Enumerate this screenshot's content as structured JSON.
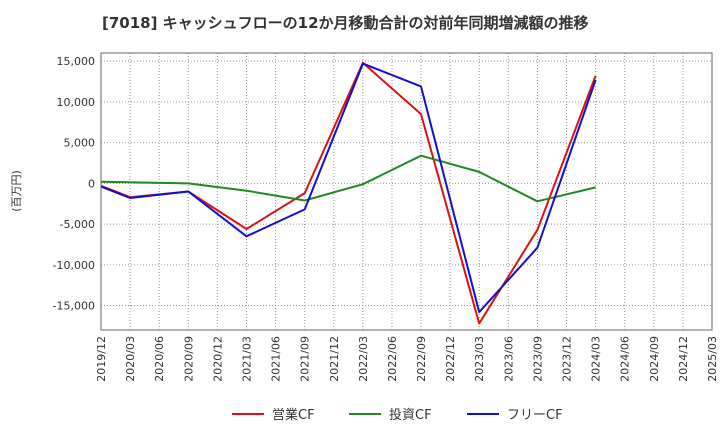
{
  "chart_data": {
    "type": "line",
    "title": "[7018]  キャッシュフローの12か月移動合計の対前年同期増減額の推移",
    "ylabel": "(百万円)",
    "xlabel": "",
    "ylim": [
      -18000,
      16000
    ],
    "yticks": [
      15000,
      10000,
      5000,
      0,
      -5000,
      -10000,
      -15000
    ],
    "ytick_labels": [
      "15,000",
      "10,000",
      "5,000",
      "0",
      "-5,000",
      "-10,000",
      "-15,000"
    ],
    "categories": [
      "2019/12",
      "2020/03",
      "2020/06",
      "2020/09",
      "2020/12",
      "2021/03",
      "2021/06",
      "2021/09",
      "2021/12",
      "2022/03",
      "2022/06",
      "2022/09",
      "2022/12",
      "2023/03",
      "2023/06",
      "2023/09",
      "2023/12",
      "2024/03",
      "2024/06",
      "2024/09",
      "2024/12",
      "2025/03"
    ],
    "grid": true,
    "legend_position": "bottom",
    "series": [
      {
        "name": "営業CF",
        "color": "#dd1111",
        "points": [
          [
            "2019/12",
            -300
          ],
          [
            "2020/03",
            -1700
          ],
          [
            "2020/09",
            -1000
          ],
          [
            "2021/03",
            -5600
          ],
          [
            "2021/09",
            -1200
          ],
          [
            "2022/03",
            14800
          ],
          [
            "2022/09",
            8500
          ],
          [
            "2023/03",
            -17200
          ],
          [
            "2023/09",
            -5700
          ],
          [
            "2024/03",
            13200
          ]
        ]
      },
      {
        "name": "投資CF",
        "color": "#228822",
        "points": [
          [
            "2019/12",
            200
          ],
          [
            "2020/09",
            0
          ],
          [
            "2021/03",
            -900
          ],
          [
            "2021/09",
            -2100
          ],
          [
            "2022/03",
            -100
          ],
          [
            "2022/09",
            3400
          ],
          [
            "2023/03",
            1400
          ],
          [
            "2023/09",
            -2200
          ],
          [
            "2024/03",
            -500
          ]
        ]
      },
      {
        "name": "フリーCF",
        "color": "#1111cc",
        "points": [
          [
            "2019/12",
            -400
          ],
          [
            "2020/03",
            -1800
          ],
          [
            "2020/09",
            -1000
          ],
          [
            "2021/03",
            -6500
          ],
          [
            "2021/09",
            -3200
          ],
          [
            "2022/03",
            14700
          ],
          [
            "2022/09",
            11900
          ],
          [
            "2023/03",
            -15800
          ],
          [
            "2023/09",
            -7900
          ],
          [
            "2024/03",
            12700
          ]
        ]
      }
    ]
  }
}
